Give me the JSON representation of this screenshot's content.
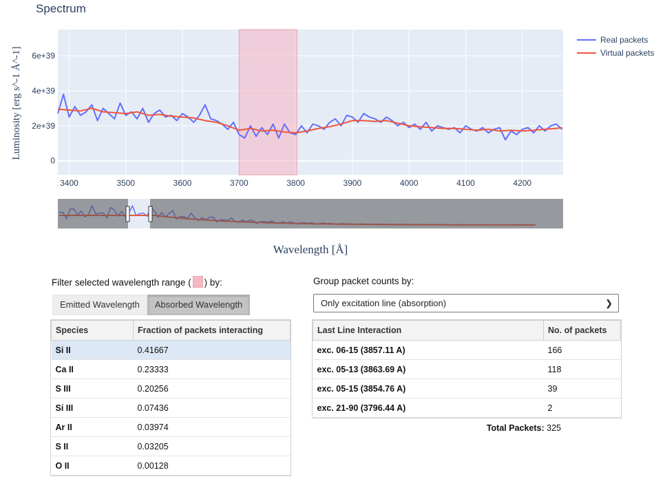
{
  "chart_data": {
    "type": "line",
    "title": "Spectrum",
    "xlabel": "Wavelength [Å]",
    "ylabel": "Luminosity [erg s^-1 Å^-1]",
    "xlim": [
      3380,
      4272
    ],
    "ylim": [
      -800000000000000000000000000000000000000,
      7500000000000000000000000000000000000000
    ],
    "x_ticks": [
      3400,
      3500,
      3600,
      3700,
      3800,
      3900,
      4000,
      4100,
      4200
    ],
    "y_ticks": [
      0,
      2e+39,
      4e+39,
      6e+39
    ],
    "y_tick_labels": [
      "0",
      "2e+39",
      "4e+39",
      "6e+39"
    ],
    "highlight_range": [
      3700,
      3802
    ],
    "legend": [
      "Real packets",
      "Virtual packets"
    ],
    "series": [
      {
        "name": "Real packets",
        "color": "#636efa",
        "x": [
          3380,
          3390,
          3400,
          3410,
          3420,
          3430,
          3440,
          3450,
          3460,
          3470,
          3480,
          3490,
          3500,
          3510,
          3520,
          3530,
          3540,
          3550,
          3560,
          3570,
          3580,
          3590,
          3600,
          3610,
          3620,
          3630,
          3640,
          3650,
          3660,
          3670,
          3680,
          3690,
          3700,
          3710,
          3720,
          3730,
          3740,
          3750,
          3760,
          3770,
          3780,
          3790,
          3800,
          3810,
          3820,
          3830,
          3840,
          3850,
          3860,
          3870,
          3880,
          3890,
          3900,
          3910,
          3920,
          3930,
          3940,
          3950,
          3960,
          3970,
          3980,
          3990,
          4000,
          4010,
          4020,
          4030,
          4040,
          4050,
          4060,
          4070,
          4080,
          4090,
          4100,
          4110,
          4120,
          4130,
          4140,
          4150,
          4160,
          4170,
          4180,
          4190,
          4200,
          4210,
          4220,
          4230,
          4240,
          4250,
          4260,
          4270
        ],
        "y": [
          2.7e+39,
          3.8e+39,
          2.5e+39,
          3.1e+39,
          2.6e+39,
          2.8e+39,
          3.2e+39,
          2.3e+39,
          3e+39,
          2.7e+39,
          2.4e+39,
          3.3e+39,
          2.6e+39,
          2.8e+39,
          2.4e+39,
          3e+39,
          2.2e+39,
          2.7e+39,
          2.9e+39,
          2.5e+39,
          2.6e+39,
          2.3e+39,
          2.7e+39,
          2.5e+39,
          2.2e+39,
          2.6e+39,
          3.2e+39,
          2.4e+39,
          2.3e+39,
          2.1e+39,
          1.8e+39,
          2.2e+39,
          1.5e+39,
          1.3e+39,
          2e+39,
          1.4e+39,
          1.9e+39,
          1.5e+39,
          2.1e+39,
          1.3e+39,
          2.1e+39,
          1.6e+39,
          1.5e+39,
          2e+39,
          1.6e+39,
          2.1e+39,
          2e+39,
          1.8e+39,
          2.2e+39,
          2.4e+39,
          2e+39,
          2.6e+39,
          2.5e+39,
          2.2e+39,
          2.7e+39,
          2.5e+39,
          2.4e+39,
          2.2e+39,
          2.5e+39,
          2.3e+39,
          2e+39,
          2.2e+39,
          1.9e+39,
          2.1e+39,
          1.8e+39,
          2.2e+39,
          1.7e+39,
          2e+39,
          1.9e+39,
          1.8e+39,
          1.9e+39,
          1.6e+39,
          2e+39,
          1.8e+39,
          1.7e+39,
          1.9e+39,
          1.6e+39,
          1.8e+39,
          1.9e+39,
          1.2e+39,
          1.7e+39,
          1.5e+39,
          1.8e+39,
          1.9e+39,
          1.6e+39,
          2e+39,
          1.7e+39,
          2e+39,
          2.1e+39,
          1.8e+39
        ]
      },
      {
        "name": "Virtual packets",
        "color": "#ef553b",
        "x": [
          3380,
          3400,
          3420,
          3440,
          3460,
          3480,
          3500,
          3520,
          3540,
          3560,
          3580,
          3600,
          3620,
          3640,
          3660,
          3680,
          3700,
          3720,
          3740,
          3760,
          3780,
          3800,
          3820,
          3840,
          3860,
          3880,
          3900,
          3920,
          3940,
          3960,
          3980,
          4000,
          4020,
          4040,
          4060,
          4080,
          4100,
          4120,
          4140,
          4160,
          4180,
          4200,
          4220,
          4240,
          4260,
          4270
        ],
        "y": [
          2.95e+39,
          2.9e+39,
          2.85e+39,
          3e+39,
          2.8e+39,
          2.75e+39,
          2.7e+39,
          2.8e+39,
          2.6e+39,
          2.65e+39,
          2.55e+39,
          2.5e+39,
          2.45e+39,
          2.3e+39,
          2.2e+39,
          2e+39,
          1.75e+39,
          1.85e+39,
          1.7e+39,
          1.75e+39,
          1.65e+39,
          1.6e+39,
          1.7e+39,
          1.85e+39,
          1.95e+39,
          2.1e+39,
          2.3e+39,
          2.3e+39,
          2.25e+39,
          2.3e+39,
          2.15e+39,
          2e+39,
          1.95e+39,
          1.9e+39,
          1.85e+39,
          1.85e+39,
          1.8e+39,
          1.75e+39,
          1.8e+39,
          1.7e+39,
          1.75e+39,
          1.7e+39,
          1.75e+39,
          1.8e+39,
          1.85e+39,
          1.9e+39
        ]
      }
    ]
  },
  "filter": {
    "label_before": "Filter selected wavelength range (",
    "label_after": ") by:",
    "buttons": [
      "Emitted Wavelength",
      "Absorbed Wavelength"
    ]
  },
  "species_table": {
    "headers": [
      "Species",
      "Fraction of packets interacting"
    ],
    "rows": [
      [
        "Si II",
        "0.41667"
      ],
      [
        "Ca II",
        "0.23333"
      ],
      [
        "S III",
        "0.20256"
      ],
      [
        "Si III",
        "0.07436"
      ],
      [
        "Ar II",
        "0.03974"
      ],
      [
        "S II",
        "0.03205"
      ],
      [
        "O II",
        "0.00128"
      ]
    ]
  },
  "group": {
    "label": "Group packet counts by:",
    "selected": "Only excitation line (absorption)"
  },
  "counts_table": {
    "headers": [
      "Last Line Interaction",
      "No. of packets"
    ],
    "rows": [
      [
        "exc. 06-15 (3857.11 A)",
        "166"
      ],
      [
        "exc. 05-13 (3863.69 A)",
        "118"
      ],
      [
        "exc. 05-15 (3854.76 A)",
        "39"
      ],
      [
        "exc. 21-90 (3796.44 A)",
        "2"
      ]
    ]
  },
  "total": {
    "label": "Total Packets:",
    "value": "325"
  }
}
